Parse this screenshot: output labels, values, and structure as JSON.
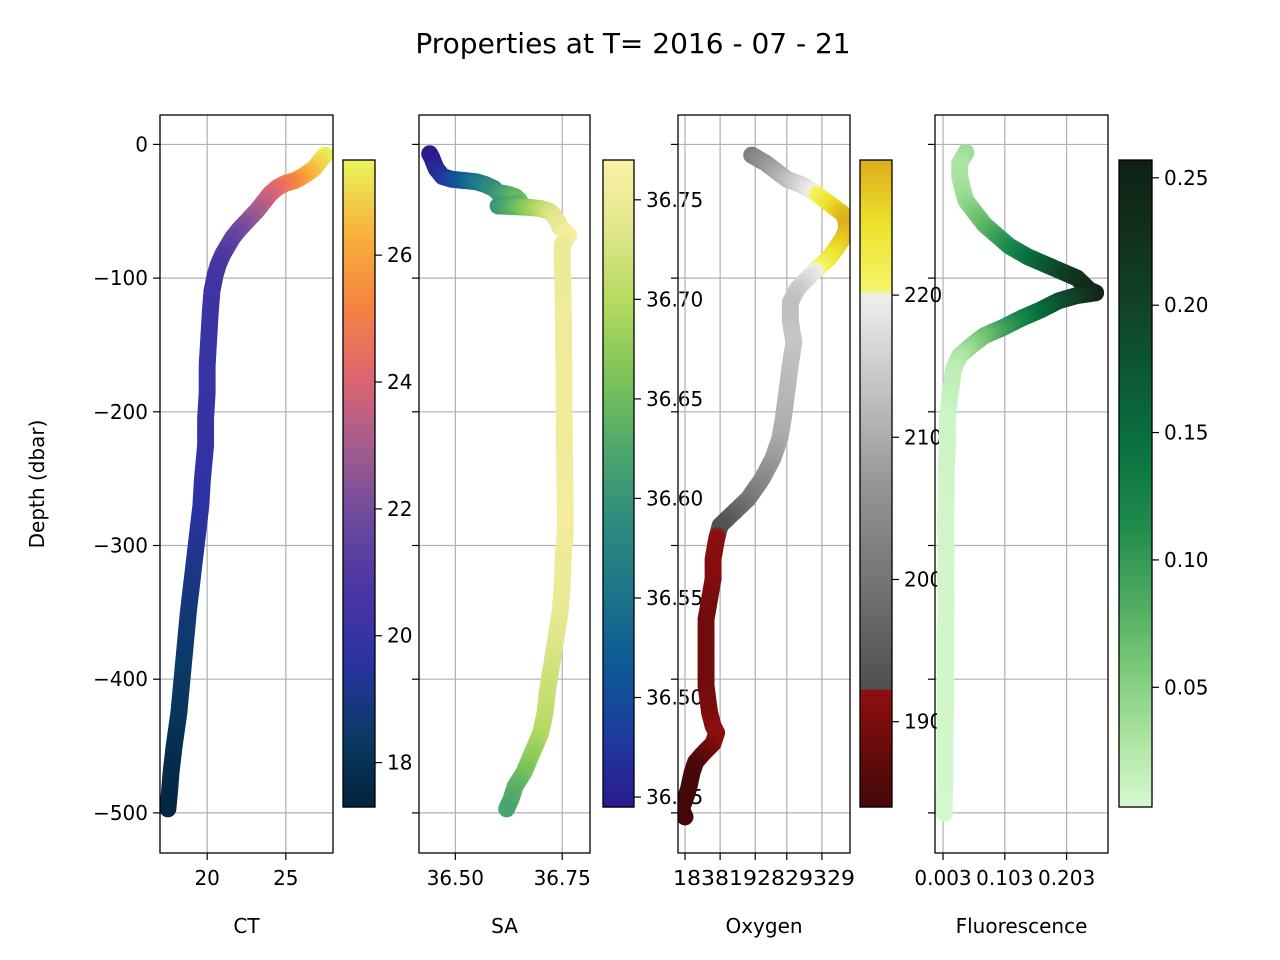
{
  "title": "Properties at T= 2016 - 07 - 21",
  "chart_data": [
    {
      "type": "scatter",
      "title": "",
      "xlabel": "CT",
      "ylabel": "Depth (dbar)",
      "xlim": [
        17.0,
        28.0
      ],
      "ylim": [
        -530,
        22
      ],
      "grid": true,
      "xticks": [
        20,
        25
      ],
      "yticks": [
        0,
        -100,
        -200,
        -300,
        -400,
        -500
      ],
      "colormap": "thermal",
      "colorbar": {
        "range": [
          17.3,
          27.5
        ],
        "ticks": [
          18,
          20,
          22,
          24,
          26
        ]
      },
      "color_variable": "CT",
      "series": [
        {
          "points": [
            [
              27.5,
              -8
            ],
            [
              27.2,
              -12
            ],
            [
              26.8,
              -18
            ],
            [
              26.2,
              -23
            ],
            [
              25.6,
              -27
            ],
            [
              25.0,
              -29
            ],
            [
              24.5,
              -32
            ],
            [
              24.0,
              -37
            ],
            [
              23.6,
              -43
            ],
            [
              23.2,
              -49
            ],
            [
              22.8,
              -54
            ],
            [
              22.4,
              -59
            ],
            [
              22.0,
              -64
            ],
            [
              21.6,
              -70
            ],
            [
              21.3,
              -76
            ],
            [
              21.0,
              -82
            ],
            [
              20.7,
              -90
            ],
            [
              20.5,
              -98
            ],
            [
              20.3,
              -110
            ],
            [
              20.2,
              -125
            ],
            [
              20.1,
              -145
            ],
            [
              20.0,
              -165
            ],
            [
              20.0,
              -185
            ],
            [
              19.9,
              -205
            ],
            [
              19.9,
              -225
            ],
            [
              19.7,
              -250
            ],
            [
              19.6,
              -270
            ],
            [
              19.4,
              -290
            ],
            [
              19.2,
              -310
            ],
            [
              19.0,
              -330
            ],
            [
              18.8,
              -350
            ],
            [
              18.6,
              -375
            ],
            [
              18.4,
              -400
            ],
            [
              18.2,
              -425
            ],
            [
              17.9,
              -450
            ],
            [
              17.7,
              -470
            ],
            [
              17.6,
              -485
            ],
            [
              17.5,
              -497
            ]
          ]
        }
      ]
    },
    {
      "type": "scatter",
      "title": "",
      "xlabel": "SA",
      "ylabel": "",
      "xlim": [
        36.415,
        36.815
      ],
      "ylim": [
        -530,
        22
      ],
      "grid": true,
      "xticks": [
        36.5,
        36.75
      ],
      "xtick_labels": [
        "36.50",
        "36.75"
      ],
      "colormap": "haline",
      "colorbar": {
        "range": [
          36.445,
          36.77
        ],
        "ticks": [
          "36.45",
          "36.50",
          "36.55",
          "36.60",
          "36.65",
          "36.70",
          "36.75"
        ]
      },
      "color_variable": "SA",
      "series": [
        {
          "points": [
            [
              36.44,
              -7
            ],
            [
              36.445,
              -10
            ],
            [
              36.45,
              -14
            ],
            [
              36.455,
              -18
            ],
            [
              36.46,
              -20
            ],
            [
              36.47,
              -24
            ],
            [
              36.49,
              -26
            ],
            [
              36.52,
              -27
            ],
            [
              36.55,
              -28
            ],
            [
              36.57,
              -30
            ],
            [
              36.59,
              -33
            ],
            [
              36.6,
              -36
            ],
            [
              36.62,
              -37
            ],
            [
              36.64,
              -39
            ],
            [
              36.65,
              -42
            ],
            [
              36.63,
              -45
            ],
            [
              36.6,
              -46
            ],
            [
              36.67,
              -47
            ],
            [
              36.7,
              -48
            ],
            [
              36.72,
              -50
            ],
            [
              36.73,
              -53
            ],
            [
              36.74,
              -58
            ],
            [
              36.745,
              -62
            ],
            [
              36.755,
              -65
            ],
            [
              36.765,
              -68
            ],
            [
              36.75,
              -75
            ],
            [
              36.75,
              -90
            ],
            [
              36.752,
              -110
            ],
            [
              36.753,
              -130
            ],
            [
              36.753,
              -150
            ],
            [
              36.754,
              -170
            ],
            [
              36.754,
              -190
            ],
            [
              36.755,
              -210
            ],
            [
              36.755,
              -230
            ],
            [
              36.756,
              -250
            ],
            [
              36.757,
              -270
            ],
            [
              36.757,
              -290
            ],
            [
              36.752,
              -310
            ],
            [
              36.75,
              -330
            ],
            [
              36.745,
              -350
            ],
            [
              36.735,
              -370
            ],
            [
              36.725,
              -390
            ],
            [
              36.715,
              -410
            ],
            [
              36.71,
              -425
            ],
            [
              36.7,
              -440
            ],
            [
              36.68,
              -455
            ],
            [
              36.66,
              -470
            ],
            [
              36.64,
              -480
            ],
            [
              36.63,
              -490
            ],
            [
              36.62,
              -497
            ]
          ]
        }
      ]
    },
    {
      "type": "scatter",
      "title": "",
      "xlabel": "Oxygen",
      "ylabel": "",
      "xlim": [
        181,
        230
      ],
      "ylim": [
        -530,
        22
      ],
      "grid": true,
      "xticks": [
        183,
        193,
        203,
        212,
        222
      ],
      "xtick_labels": [
        "183",
        "193",
        "203",
        "212",
        "222"
      ],
      "overprinted_xtick_text": "1838192829329",
      "colormap": "oxy",
      "colorbar": {
        "range": [
          184,
          229.5
        ],
        "ticks": [
          190,
          200,
          210,
          220
        ]
      },
      "color_variable": "Oxygen",
      "series": [
        {
          "points": [
            [
              202,
              -8
            ],
            [
              204,
              -11
            ],
            [
              206,
              -14
            ],
            [
              208,
              -18
            ],
            [
              210,
              -22
            ],
            [
              212,
              -26
            ],
            [
              214,
              -28
            ],
            [
              216,
              -30
            ],
            [
              218,
              -33
            ],
            [
              220,
              -36
            ],
            [
              222,
              -40
            ],
            [
              224,
              -44
            ],
            [
              226,
              -48
            ],
            [
              228,
              -52
            ],
            [
              229,
              -58
            ],
            [
              229,
              -64
            ],
            [
              228,
              -70
            ],
            [
              226,
              -78
            ],
            [
              224,
              -85
            ],
            [
              221,
              -92
            ],
            [
              218,
              -100
            ],
            [
              215,
              -108
            ],
            [
              213,
              -118
            ],
            [
              213,
              -132
            ],
            [
              214,
              -148
            ],
            [
              213,
              -165
            ],
            [
              212,
              -185
            ],
            [
              211,
              -205
            ],
            [
              210,
              -220
            ],
            [
              208,
              -235
            ],
            [
              205,
              -250
            ],
            [
              201,
              -265
            ],
            [
              197,
              -275
            ],
            [
              193,
              -285
            ],
            [
              192,
              -295
            ],
            [
              191,
              -310
            ],
            [
              191,
              -325
            ],
            [
              190,
              -340
            ],
            [
              189,
              -355
            ],
            [
              189,
              -380
            ],
            [
              189,
              -405
            ],
            [
              190,
              -425
            ],
            [
              191,
              -435
            ],
            [
              192,
              -440
            ],
            [
              191,
              -448
            ],
            [
              188,
              -456
            ],
            [
              186,
              -462
            ],
            [
              185,
              -470
            ],
            [
              184,
              -482
            ],
            [
              183,
              -490
            ],
            [
              182,
              -497
            ],
            [
              183,
              -503
            ]
          ]
        }
      ]
    },
    {
      "type": "scatter",
      "title": "",
      "xlabel": "Fluorescence",
      "ylabel": "",
      "xlim": [
        -0.01,
        0.27
      ],
      "ylim": [
        -530,
        22
      ],
      "grid": true,
      "xticks": [
        0.003,
        0.103,
        0.203
      ],
      "xtick_labels": [
        "0.003",
        "0.103",
        "0.203"
      ],
      "colormap": "algae",
      "colorbar": {
        "range": [
          0.003,
          0.257
        ],
        "ticks": [
          "0.05",
          "0.10",
          "0.15",
          "0.20",
          "0.25"
        ]
      },
      "color_variable": "Fluorescence",
      "series": [
        {
          "points": [
            [
              0.04,
              -6
            ],
            [
              0.03,
              -14
            ],
            [
              0.03,
              -24
            ],
            [
              0.035,
              -34
            ],
            [
              0.04,
              -42
            ],
            [
              0.05,
              -48
            ],
            [
              0.06,
              -54
            ],
            [
              0.07,
              -60
            ],
            [
              0.09,
              -68
            ],
            [
              0.11,
              -76
            ],
            [
              0.14,
              -84
            ],
            [
              0.17,
              -90
            ],
            [
              0.2,
              -96
            ],
            [
              0.22,
              -100
            ],
            [
              0.24,
              -109
            ],
            [
              0.25,
              -111
            ],
            [
              0.22,
              -113
            ],
            [
              0.19,
              -117
            ],
            [
              0.16,
              -124
            ],
            [
              0.13,
              -130
            ],
            [
              0.1,
              -137
            ],
            [
              0.07,
              -143
            ],
            [
              0.05,
              -150
            ],
            [
              0.03,
              -158
            ],
            [
              0.02,
              -168
            ],
            [
              0.015,
              -185
            ],
            [
              0.01,
              -205
            ],
            [
              0.01,
              -225
            ],
            [
              0.008,
              -245
            ],
            [
              0.008,
              -265
            ],
            [
              0.007,
              -285
            ],
            [
              0.008,
              -305
            ],
            [
              0.007,
              -325
            ],
            [
              0.008,
              -345
            ],
            [
              0.007,
              -365
            ],
            [
              0.007,
              -385
            ],
            [
              0.007,
              -405
            ],
            [
              0.007,
              -425
            ],
            [
              0.006,
              -445
            ],
            [
              0.006,
              -465
            ],
            [
              0.006,
              -480
            ],
            [
              0.005,
              -490
            ],
            [
              0.005,
              -500
            ]
          ]
        }
      ]
    }
  ]
}
